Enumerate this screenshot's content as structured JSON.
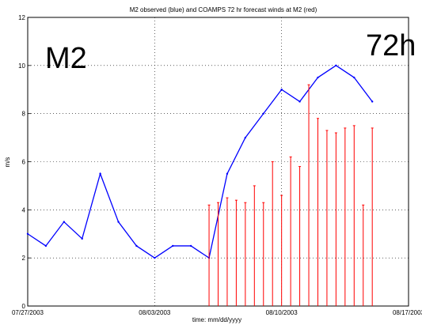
{
  "chart_data": {
    "type": "line",
    "title": "M2 observed (blue) and COAMPS 72 hr forecast winds at M2 (red)",
    "xlabel": "time: mm/dd/yyyy",
    "ylabel": "m/s",
    "xlim": [
      "2003-07-27",
      "2003-08-17"
    ],
    "ylim": [
      0,
      12
    ],
    "xticks": [
      "07/27/2003",
      "08/03/2003",
      "08/10/2003",
      "08/17/2003"
    ],
    "yticks": [
      "0",
      "2",
      "4",
      "6",
      "8",
      "10",
      "12"
    ],
    "grid": true,
    "annotations": [
      "M2",
      "72h"
    ],
    "series": [
      {
        "color": "#0000ff",
        "style": "line",
        "x": [
          "2003-07-27",
          "2003-07-28",
          "2003-07-29",
          "2003-07-30",
          "2003-07-31",
          "2003-08-01",
          "2003-08-02",
          "2003-08-03",
          "2003-08-04",
          "2003-08-05",
          "2003-08-06",
          "2003-08-07",
          "2003-08-08",
          "2003-08-09",
          "2003-08-10",
          "2003-08-11",
          "2003-08-12",
          "2003-08-13",
          "2003-08-14",
          "2003-08-15"
        ],
        "y": [
          3.0,
          2.5,
          3.5,
          2.8,
          5.5,
          3.5,
          2.5,
          2.0,
          2.5,
          2.5,
          2.0,
          5.5,
          7.0,
          8.0,
          9.0,
          8.5,
          9.5,
          10.0,
          9.5,
          8.5
        ]
      },
      {
        "color": "#ff0000",
        "style": "stems",
        "x": [
          "2003-08-06",
          "2003-08-06.5",
          "2003-08-07",
          "2003-08-07.5",
          "2003-08-08",
          "2003-08-08.5",
          "2003-08-09",
          "2003-08-09.5",
          "2003-08-10",
          "2003-08-10.5",
          "2003-08-11",
          "2003-08-11.5",
          "2003-08-12",
          "2003-08-12.5",
          "2003-08-13",
          "2003-08-13.5",
          "2003-08-14",
          "2003-08-14.5",
          "2003-08-15"
        ],
        "y": [
          4.2,
          4.3,
          4.5,
          4.4,
          4.3,
          5.0,
          4.3,
          6.0,
          4.6,
          6.2,
          5.8,
          9.2,
          7.8,
          7.3,
          7.2,
          7.4,
          7.5,
          4.2,
          7.4
        ]
      }
    ]
  }
}
